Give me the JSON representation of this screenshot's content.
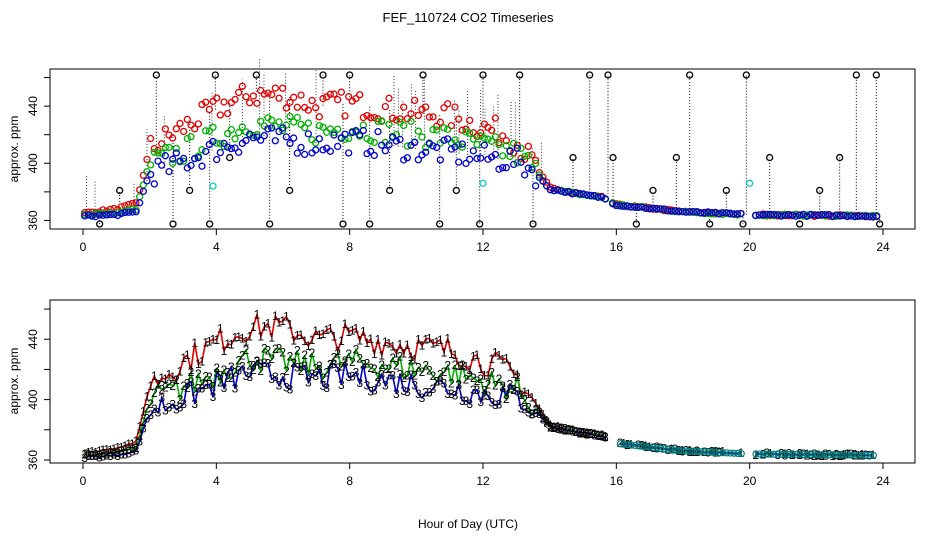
{
  "title": "FEF_110724  CO2 Timeseries",
  "xlabel": "Hour of Day (UTC)",
  "colors": {
    "red": "#e00000",
    "green": "#00b000",
    "blue": "#0000cc",
    "black": "#000000",
    "cyan": "#00cccc"
  },
  "chart_data": [
    {
      "type": "scatter",
      "ylabel": "approx. ppm",
      "xlim": [
        0,
        24
      ],
      "ylim": [
        354,
        466
      ],
      "x_ticks": [
        "0",
        "4",
        "8",
        "12",
        "16",
        "20",
        "24"
      ],
      "x_tick_values": [
        0,
        4,
        8,
        12,
        16,
        20,
        24
      ],
      "y_ticks": [
        "360",
        "400",
        "440"
      ],
      "y_tick_values": [
        360,
        400,
        440
      ],
      "y_minor_ticks": [
        380,
        420,
        460
      ],
      "series": [
        {
          "color": "red",
          "profile": [
            [
              0,
              365
            ],
            [
              1,
              368
            ],
            [
              1.6,
              372
            ],
            [
              2,
              410
            ],
            [
              3,
              425
            ],
            [
              4,
              438
            ],
            [
              5,
              448
            ],
            [
              6,
              448
            ],
            [
              7,
              440
            ],
            [
              8,
              442
            ],
            [
              9,
              438
            ],
            [
              10,
              435
            ],
            [
              11,
              433
            ],
            [
              12,
              425
            ],
            [
              12.5,
              422
            ],
            [
              13,
              415
            ],
            [
              13.5,
              400
            ],
            [
              14,
              383
            ],
            [
              14.5,
              380
            ],
            [
              15,
              378
            ],
            [
              15.6,
              376
            ],
            [
              16,
              371
            ],
            [
              18,
              366
            ],
            [
              20,
              364
            ],
            [
              24,
              363
            ]
          ]
        },
        {
          "color": "green",
          "profile": [
            [
              0,
              364
            ],
            [
              1,
              365
            ],
            [
              1.6,
              368
            ],
            [
              2,
              400
            ],
            [
              3,
              408
            ],
            [
              4,
              418
            ],
            [
              5,
              428
            ],
            [
              6,
              425
            ],
            [
              7,
              422
            ],
            [
              8,
              425
            ],
            [
              9,
              423
            ],
            [
              10,
              420
            ],
            [
              11,
              418
            ],
            [
              12,
              412
            ],
            [
              13,
              407
            ],
            [
              13.5,
              397
            ],
            [
              14,
              382
            ],
            [
              14.5,
              380
            ],
            [
              15,
              378
            ],
            [
              15.6,
              376
            ],
            [
              16,
              371
            ],
            [
              18,
              366
            ],
            [
              20,
              364
            ],
            [
              24,
              363
            ]
          ]
        },
        {
          "color": "blue",
          "profile": [
            [
              0,
              363
            ],
            [
              1,
              364
            ],
            [
              1.6,
              366
            ],
            [
              2,
              393
            ],
            [
              3,
              401
            ],
            [
              4,
              410
            ],
            [
              5,
              418
            ],
            [
              6,
              416
            ],
            [
              7,
              414
            ],
            [
              8,
              416
            ],
            [
              9,
              413
            ],
            [
              10,
              410
            ],
            [
              11,
              408
            ],
            [
              12,
              404
            ],
            [
              13,
              402
            ],
            [
              13.5,
              395
            ],
            [
              14,
              382
            ],
            [
              14.5,
              380
            ],
            [
              15,
              378
            ],
            [
              15.6,
              376
            ],
            [
              16,
              371
            ],
            [
              18,
              366
            ],
            [
              20,
              364
            ],
            [
              24,
              363
            ]
          ]
        }
      ],
      "gaps": [
        [
          15.7,
          15.85
        ],
        [
          19.8,
          20.1
        ]
      ],
      "spikes_high": [
        2.2,
        3.97,
        5.2,
        7.2,
        8.0,
        10.2,
        12.0,
        13.1,
        15.2,
        15.75,
        18.2,
        19.9,
        23.2,
        23.8
      ],
      "spikes_low": [
        0.5,
        2.7,
        3.8,
        5.6,
        7.8,
        8.6,
        10.7,
        11.9,
        13.5,
        16.6,
        18.8,
        19.8,
        21.5,
        23.9
      ],
      "spikes_mid": [
        [
          1.1,
          381
        ],
        [
          3.2,
          381
        ],
        [
          4.4,
          404
        ],
        [
          6.2,
          381
        ],
        [
          9.2,
          381
        ],
        [
          11.2,
          381
        ],
        [
          14.7,
          404
        ],
        [
          15.9,
          404
        ],
        [
          17.1,
          381
        ],
        [
          17.8,
          404
        ],
        [
          19.3,
          381
        ],
        [
          20.6,
          404
        ],
        [
          22.1,
          381
        ],
        [
          22.7,
          404
        ]
      ],
      "cyan_points": [
        [
          3.9,
          384
        ],
        [
          12.0,
          386
        ],
        [
          20.0,
          386
        ]
      ]
    },
    {
      "type": "line",
      "ylabel": "approx. ppm",
      "xlim": [
        0,
        24
      ],
      "ylim": [
        358,
        466
      ],
      "x_ticks": [
        "0",
        "4",
        "8",
        "12",
        "16",
        "20",
        "24"
      ],
      "x_tick_values": [
        0,
        4,
        8,
        12,
        16,
        20,
        24
      ],
      "y_ticks": [
        "360",
        "400",
        "440"
      ],
      "y_tick_values": [
        360,
        400,
        440
      ],
      "y_minor_ticks": [
        380,
        420,
        460
      ],
      "series": [
        {
          "color": "red",
          "marker": "1",
          "profile": [
            [
              0,
              364
            ],
            [
              1,
              368
            ],
            [
              1.6,
              372
            ],
            [
              2,
              410
            ],
            [
              3,
              425
            ],
            [
              4,
              438
            ],
            [
              5,
              448
            ],
            [
              6,
              448
            ],
            [
              7,
              440
            ],
            [
              8,
              442
            ],
            [
              9,
              438
            ],
            [
              10,
              435
            ],
            [
              11,
              433
            ],
            [
              12,
              425
            ],
            [
              12.5,
              422
            ],
            [
              13,
              415
            ],
            [
              13.5,
              400
            ],
            [
              14,
              383
            ],
            [
              14.5,
              380
            ],
            [
              15,
              378
            ],
            [
              15.6,
              376
            ],
            [
              16,
              371
            ],
            [
              18,
              366
            ],
            [
              20,
              364
            ],
            [
              24,
              363
            ]
          ]
        },
        {
          "color": "green",
          "marker": "2",
          "profile": [
            [
              0,
              363
            ],
            [
              1,
              365
            ],
            [
              1.6,
              368
            ],
            [
              2,
              400
            ],
            [
              3,
              408
            ],
            [
              4,
              418
            ],
            [
              5,
              428
            ],
            [
              6,
              425
            ],
            [
              7,
              422
            ],
            [
              8,
              425
            ],
            [
              9,
              423
            ],
            [
              10,
              420
            ],
            [
              11,
              418
            ],
            [
              12,
              412
            ],
            [
              13,
              407
            ],
            [
              13.5,
              397
            ],
            [
              14,
              382
            ],
            [
              14.5,
              380
            ],
            [
              15,
              378
            ],
            [
              15.6,
              376
            ],
            [
              16,
              371
            ],
            [
              18,
              366
            ],
            [
              20,
              364
            ],
            [
              24,
              363
            ]
          ]
        },
        {
          "color": "blue",
          "marker": "3",
          "profile": [
            [
              0,
              362
            ],
            [
              1,
              363
            ],
            [
              1.6,
              366
            ],
            [
              2,
              393
            ],
            [
              3,
              401
            ],
            [
              4,
              410
            ],
            [
              5,
              418
            ],
            [
              6,
              416
            ],
            [
              7,
              414
            ],
            [
              8,
              416
            ],
            [
              9,
              413
            ],
            [
              10,
              410
            ],
            [
              11,
              408
            ],
            [
              12,
              404
            ],
            [
              13,
              402
            ],
            [
              13.5,
              395
            ],
            [
              14,
              382
            ],
            [
              14.5,
              380
            ],
            [
              15,
              378
            ],
            [
              15.6,
              376
            ],
            [
              16,
              371
            ],
            [
              18,
              366
            ],
            [
              20,
              364
            ],
            [
              24,
              363
            ]
          ]
        }
      ],
      "gaps": [
        [
          15.7,
          16.05
        ],
        [
          19.8,
          20.15
        ]
      ]
    }
  ]
}
